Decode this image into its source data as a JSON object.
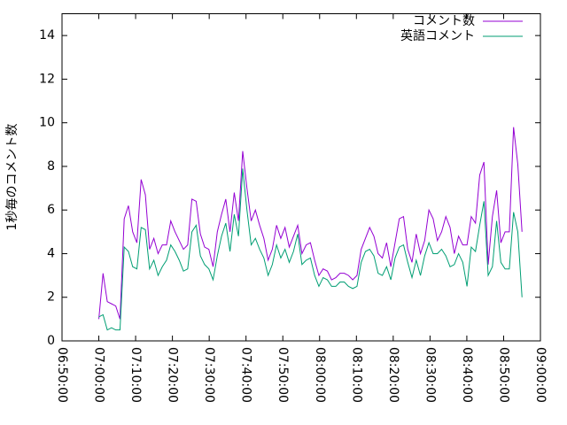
{
  "chart_data": {
    "type": "line",
    "y_label": "1秒毎のコメント数",
    "x": [
      "07:00:00",
      "07:01:09",
      "07:02:18",
      "07:03:27",
      "07:04:36",
      "07:05:45",
      "07:06:54",
      "07:08:03",
      "07:09:12",
      "07:10:21",
      "07:11:30",
      "07:12:39",
      "07:13:48",
      "07:14:57",
      "07:16:06",
      "07:17:15",
      "07:18:24",
      "07:19:33",
      "07:20:42",
      "07:21:51",
      "07:23:00",
      "07:24:09",
      "07:25:18",
      "07:26:27",
      "07:27:36",
      "07:28:45",
      "07:29:54",
      "07:31:03",
      "07:32:12",
      "07:33:21",
      "07:34:30",
      "07:35:39",
      "07:36:48",
      "07:37:57",
      "07:39:06",
      "07:40:15",
      "07:41:24",
      "07:42:33",
      "07:43:42",
      "07:44:51",
      "07:46:00",
      "07:47:09",
      "07:48:18",
      "07:49:27",
      "07:50:36",
      "07:51:45",
      "07:52:54",
      "07:54:03",
      "07:55:12",
      "07:56:21",
      "07:57:30",
      "07:58:39",
      "07:59:48",
      "08:00:57",
      "08:02:06",
      "08:03:15",
      "08:04:24",
      "08:05:33",
      "08:06:42",
      "08:07:51",
      "08:09:00",
      "08:10:09",
      "08:11:18",
      "08:12:27",
      "08:13:36",
      "08:14:45",
      "08:15:54",
      "08:17:03",
      "08:18:12",
      "08:19:21",
      "08:20:30",
      "08:21:39",
      "08:22:48",
      "08:23:57",
      "08:25:06",
      "08:26:15",
      "08:27:24",
      "08:28:33",
      "08:29:42",
      "08:30:51",
      "08:32:00",
      "08:33:09",
      "08:34:18",
      "08:35:27",
      "08:36:36",
      "08:37:45",
      "08:38:54",
      "08:40:03",
      "08:41:12",
      "08:42:21",
      "08:43:30",
      "08:44:39",
      "08:45:48",
      "08:46:57",
      "08:48:06",
      "08:49:15",
      "08:50:24",
      "08:51:33",
      "08:52:42",
      "08:53:51",
      "08:55:00"
    ],
    "series": [
      {
        "name": "コメント数",
        "color": "#9400d3",
        "values": [
          1.0,
          3.1,
          1.8,
          1.7,
          1.6,
          1.0,
          5.6,
          6.2,
          5.0,
          4.5,
          7.4,
          6.7,
          4.2,
          4.7,
          4.0,
          4.4,
          4.4,
          5.5,
          5.0,
          4.6,
          4.2,
          4.4,
          6.5,
          6.4,
          4.9,
          4.3,
          4.2,
          3.4,
          5.0,
          5.8,
          6.5,
          5.0,
          6.8,
          5.5,
          8.7,
          7.0,
          5.5,
          6.0,
          5.3,
          4.7,
          3.7,
          4.2,
          5.3,
          4.7,
          5.2,
          4.3,
          4.8,
          5.3,
          4.0,
          4.4,
          4.5,
          3.7,
          3.0,
          3.3,
          3.2,
          2.8,
          2.9,
          3.1,
          3.1,
          3.0,
          2.8,
          3.0,
          4.2,
          4.7,
          5.2,
          4.8,
          4.0,
          3.8,
          4.5,
          3.4,
          4.5,
          5.6,
          5.7,
          4.2,
          3.6,
          4.9,
          4.0,
          4.6,
          6.0,
          5.6,
          4.6,
          5.0,
          5.7,
          5.2,
          4.0,
          4.8,
          4.4,
          4.4,
          5.7,
          5.4,
          7.6,
          8.2,
          3.5,
          5.7,
          6.9,
          4.5,
          5.0,
          5.0,
          9.8,
          8.1,
          5.0
        ]
      },
      {
        "name": "英語コメント",
        "color": "#009e73",
        "values": [
          1.1,
          1.2,
          0.5,
          0.6,
          0.5,
          0.5,
          4.3,
          4.1,
          3.4,
          3.3,
          5.2,
          5.1,
          3.3,
          3.7,
          3.0,
          3.4,
          3.7,
          4.4,
          4.1,
          3.7,
          3.2,
          3.3,
          5.0,
          5.3,
          3.9,
          3.5,
          3.3,
          2.8,
          3.9,
          4.8,
          5.4,
          4.1,
          5.8,
          4.8,
          7.9,
          6.0,
          4.4,
          4.7,
          4.2,
          3.8,
          3.0,
          3.5,
          4.4,
          3.8,
          4.2,
          3.6,
          4.1,
          4.9,
          3.5,
          3.7,
          3.8,
          3.0,
          2.5,
          2.9,
          2.8,
          2.5,
          2.5,
          2.7,
          2.7,
          2.5,
          2.4,
          2.5,
          3.6,
          4.1,
          4.2,
          3.9,
          3.1,
          3.0,
          3.4,
          2.8,
          3.8,
          4.3,
          4.4,
          3.6,
          2.9,
          3.7,
          3.0,
          3.9,
          4.5,
          4.0,
          4.0,
          4.2,
          3.9,
          3.4,
          3.5,
          4.0,
          3.6,
          2.5,
          4.3,
          4.1,
          5.3,
          6.4,
          3.0,
          3.4,
          5.5,
          3.6,
          3.3,
          3.3,
          5.9,
          5.0,
          2.0
        ]
      }
    ],
    "xlim": [
      "06:50:00",
      "09:00:00"
    ],
    "xticks": [
      "06:50:00",
      "07:00:00",
      "07:10:00",
      "07:20:00",
      "07:30:00",
      "07:40:00",
      "07:50:00",
      "08:00:00",
      "08:10:00",
      "08:20:00",
      "08:30:00",
      "08:40:00",
      "08:50:00",
      "09:00:00"
    ],
    "ylim": [
      0,
      15
    ],
    "yticks": [
      0,
      2,
      4,
      6,
      8,
      10,
      12,
      14
    ],
    "legend": "top-right"
  }
}
